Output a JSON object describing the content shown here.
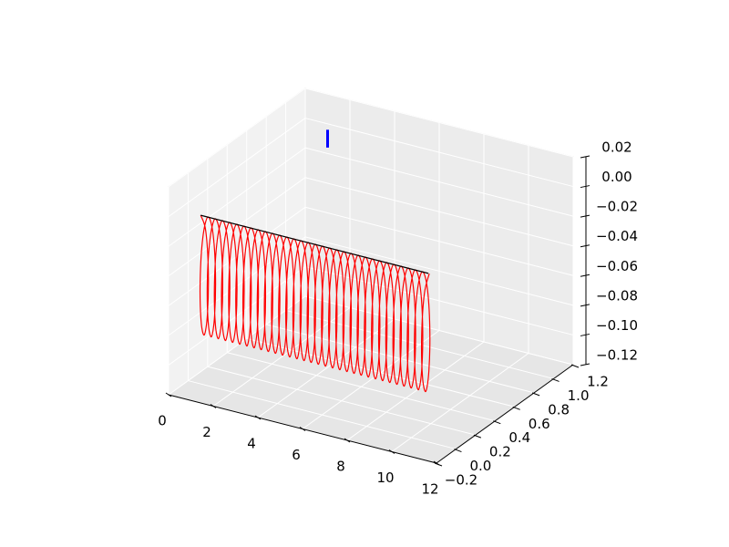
{
  "chart_data": {
    "type": "line3d",
    "xlim": [
      0,
      12
    ],
    "ylim": [
      -0.2,
      1.2
    ],
    "zlim": [
      -0.12,
      0.02
    ],
    "xticks": [
      0,
      2,
      4,
      6,
      8,
      10,
      12
    ],
    "yticks": [
      {
        "value": -0.2,
        "label": "−0.2"
      },
      {
        "value": 0,
        "label": "0.0"
      },
      0.2,
      0.4,
      0.6,
      0.8,
      {
        "value": 1,
        "label": "1.0"
      },
      1.2
    ],
    "zticks": [
      {
        "value": -0.12,
        "label": "−0.12"
      },
      {
        "value": -0.1,
        "label": "−0.10"
      },
      {
        "value": -0.08,
        "label": "−0.08"
      },
      {
        "value": -0.06,
        "label": "−0.06"
      },
      {
        "value": -0.04,
        "label": "−0.04"
      },
      {
        "value": -0.02,
        "label": "−0.02"
      },
      {
        "value": 0,
        "label": "0.00"
      },
      0.02
    ],
    "grid": true,
    "series": [
      {
        "color": "#ff0000",
        "x": [
          1,
          1.04,
          1.08,
          1.12,
          1.16,
          1.2,
          1.24,
          1.28,
          1.32,
          1.36,
          1.4,
          1.44,
          1.48,
          1.52,
          1.56,
          1.6,
          1.64,
          1.68,
          1.72,
          1.76,
          1.8,
          1.84,
          1.88,
          1.92,
          1.96,
          2,
          2.04,
          2.08,
          2.12,
          2.16,
          2.2,
          2.24,
          2.28,
          2.32,
          2.36,
          2.4,
          2.44,
          2.48,
          2.52,
          2.56,
          2.6,
          2.64,
          2.68,
          2.72,
          2.76,
          2.8,
          2.84,
          2.88,
          2.92,
          2.96,
          3,
          3.04,
          3.08,
          3.12,
          3.16,
          3.2,
          3.24,
          3.28,
          3.32,
          3.36,
          3.4,
          3.44,
          3.48,
          3.52,
          3.56,
          3.6,
          3.64,
          3.68,
          3.72,
          3.76,
          3.8,
          3.84,
          3.88,
          3.92,
          3.96,
          4,
          4.04,
          4.08,
          4.12,
          4.16,
          4.2,
          4.24,
          4.28,
          4.32,
          4.36,
          4.4,
          4.44,
          4.48,
          4.52,
          4.56,
          4.6,
          4.64,
          4.68,
          4.72,
          4.76,
          4.8,
          4.84,
          4.88,
          4.92,
          4.96,
          5,
          5.04,
          5.08,
          5.12,
          5.16,
          5.2,
          5.24,
          5.28,
          5.32,
          5.36,
          5.4,
          5.44,
          5.48,
          5.52,
          5.56,
          5.6,
          5.64,
          5.68,
          5.72,
          5.76,
          5.8,
          5.84,
          5.88,
          5.92,
          5.96,
          6,
          6.04,
          6.08,
          6.12,
          6.16,
          6.2,
          6.24,
          6.28,
          6.32,
          6.36,
          6.4,
          6.44,
          6.48,
          6.52,
          6.56,
          6.6,
          6.64,
          6.68,
          6.72,
          6.76,
          6.8,
          6.84,
          6.88,
          6.92,
          6.96,
          7,
          7.04,
          7.08,
          7.12,
          7.16,
          7.2,
          7.24,
          7.28,
          7.32,
          7.36,
          7.4,
          7.44,
          7.48,
          7.52,
          7.56,
          7.6,
          7.64,
          7.68,
          7.72,
          7.76,
          7.8,
          7.84,
          7.88,
          7.92,
          7.96,
          8,
          8.04,
          8.08,
          8.12,
          8.16,
          8.2,
          8.24,
          8.28,
          8.32,
          8.36,
          8.4,
          8.44,
          8.48,
          8.52,
          8.56,
          8.6,
          8.64,
          8.68,
          8.72,
          8.76,
          8.8,
          8.84,
          8.88,
          8.92,
          8.96,
          9,
          9.04,
          9.08,
          9.12,
          9.16,
          9.2,
          9.24,
          9.28,
          9.32,
          9.36,
          9.4,
          9.44,
          9.48,
          9.52,
          9.56,
          9.6,
          9.64,
          9.68,
          9.72,
          9.76,
          9.8,
          9.84,
          9.88,
          9.92,
          9.96,
          10,
          10.04,
          10.08,
          10.12,
          10.16,
          10.2,
          10.24,
          10.28,
          10.32,
          10.36,
          10.4,
          10.44,
          10.48,
          10.52,
          10.56,
          10.6,
          10.64,
          10.68,
          10.72,
          10.76,
          10.8,
          10.84,
          10.88,
          10.92,
          10.96,
          11,
          11.04,
          11.08,
          11.12,
          11.16,
          11.2,
          11.24
        ],
        "y": [
          -0.1,
          -0.058,
          -0.04,
          -0.058,
          -0.1,
          -0.142,
          -0.16,
          -0.142,
          -0.1,
          -0.058,
          -0.04,
          -0.058,
          -0.1,
          -0.142,
          -0.16,
          -0.142,
          -0.1,
          -0.058,
          -0.04,
          -0.058,
          -0.1,
          -0.142,
          -0.16,
          -0.142,
          -0.1,
          -0.058,
          -0.04,
          -0.058,
          -0.1,
          -0.142,
          -0.16,
          -0.142,
          -0.1,
          -0.058,
          -0.04,
          -0.058,
          -0.1,
          -0.142,
          -0.16,
          -0.142,
          -0.1,
          -0.058,
          -0.04,
          -0.058,
          -0.1,
          -0.142,
          -0.16,
          -0.142,
          -0.1,
          -0.058,
          -0.04,
          -0.058,
          -0.1,
          -0.142,
          -0.16,
          -0.142,
          -0.1,
          -0.058,
          -0.04,
          -0.058,
          -0.1,
          -0.142,
          -0.16,
          -0.142,
          -0.1,
          -0.058,
          -0.04,
          -0.058,
          -0.1,
          -0.142,
          -0.16,
          -0.142,
          -0.1,
          -0.058,
          -0.04,
          -0.058,
          -0.1,
          -0.142,
          -0.16,
          -0.142,
          -0.1,
          -0.058,
          -0.04,
          -0.058,
          -0.1,
          -0.142,
          -0.16,
          -0.142,
          -0.1,
          -0.058,
          -0.04,
          -0.058,
          -0.1,
          -0.142,
          -0.16,
          -0.142,
          -0.1,
          -0.058,
          -0.04,
          -0.058,
          -0.1,
          -0.142,
          -0.16,
          -0.142,
          -0.1,
          -0.058,
          -0.04,
          -0.058,
          -0.1,
          -0.142,
          -0.16,
          -0.142,
          -0.1,
          -0.058,
          -0.04,
          -0.058,
          -0.1,
          -0.142,
          -0.16,
          -0.142,
          -0.1,
          -0.058,
          -0.04,
          -0.058,
          -0.1,
          -0.142,
          -0.16,
          -0.142,
          -0.1,
          -0.058,
          -0.04,
          -0.058,
          -0.1,
          -0.142,
          -0.16,
          -0.142,
          -0.1,
          -0.058,
          -0.04,
          -0.058,
          -0.1,
          -0.142,
          -0.16,
          -0.142,
          -0.1,
          -0.058,
          -0.04,
          -0.058,
          -0.1,
          -0.142,
          -0.16,
          -0.142,
          -0.1,
          -0.058,
          -0.04,
          -0.058,
          -0.1,
          -0.142,
          -0.16,
          -0.142,
          -0.1,
          -0.058,
          -0.04,
          -0.058,
          -0.1,
          -0.142,
          -0.16,
          -0.142,
          -0.1,
          -0.058,
          -0.04,
          -0.058,
          -0.1,
          -0.142,
          -0.16,
          -0.142,
          -0.1,
          -0.058,
          -0.04,
          -0.058,
          -0.1,
          -0.142,
          -0.16,
          -0.142,
          -0.1,
          -0.058,
          -0.04,
          -0.058,
          -0.1,
          -0.142,
          -0.16,
          -0.142,
          -0.1,
          -0.058,
          -0.04,
          -0.058,
          -0.1,
          -0.142,
          -0.16,
          -0.142,
          -0.1,
          -0.058,
          -0.04,
          -0.058,
          -0.1,
          -0.142,
          -0.16,
          -0.142,
          -0.1,
          -0.058,
          -0.04,
          -0.058,
          -0.1,
          -0.142,
          -0.16,
          -0.142,
          -0.1,
          -0.058,
          -0.04,
          -0.058,
          -0.1,
          -0.142,
          -0.16,
          -0.142,
          -0.1,
          -0.058,
          -0.04,
          -0.058,
          -0.1,
          -0.142,
          -0.16,
          -0.142,
          -0.1,
          -0.058,
          -0.04,
          -0.058,
          -0.1,
          -0.142,
          -0.16,
          -0.142,
          -0.1,
          -0.058,
          -0.04,
          -0.058,
          -0.1,
          -0.142,
          -0.16,
          -0.142,
          -0.1,
          -0.058,
          -0.04,
          -0.058,
          -0.1,
          -0.142,
          -0.16,
          -0.142,
          -0.1
        ],
        "z": [
          0,
          -0.012,
          -0.04,
          -0.068,
          -0.08,
          -0.068,
          -0.04,
          -0.012,
          0,
          -0.012,
          -0.04,
          -0.068,
          -0.08,
          -0.068,
          -0.04,
          -0.012,
          0,
          -0.012,
          -0.04,
          -0.068,
          -0.08,
          -0.068,
          -0.04,
          -0.012,
          0,
          -0.012,
          -0.04,
          -0.068,
          -0.08,
          -0.068,
          -0.04,
          -0.012,
          0,
          -0.012,
          -0.04,
          -0.068,
          -0.08,
          -0.068,
          -0.04,
          -0.012,
          0,
          -0.012,
          -0.04,
          -0.068,
          -0.08,
          -0.068,
          -0.04,
          -0.012,
          0,
          -0.012,
          -0.04,
          -0.068,
          -0.08,
          -0.068,
          -0.04,
          -0.012,
          0,
          -0.012,
          -0.04,
          -0.068,
          -0.08,
          -0.068,
          -0.04,
          -0.012,
          0,
          -0.012,
          -0.04,
          -0.068,
          -0.08,
          -0.068,
          -0.04,
          -0.012,
          0,
          -0.012,
          -0.04,
          -0.068,
          -0.08,
          -0.068,
          -0.04,
          -0.012,
          0,
          -0.012,
          -0.04,
          -0.068,
          -0.08,
          -0.068,
          -0.04,
          -0.012,
          0,
          -0.012,
          -0.04,
          -0.068,
          -0.08,
          -0.068,
          -0.04,
          -0.012,
          0,
          -0.012,
          -0.04,
          -0.068,
          -0.08,
          -0.068,
          -0.04,
          -0.012,
          0,
          -0.012,
          -0.04,
          -0.068,
          -0.08,
          -0.068,
          -0.04,
          -0.012,
          0,
          -0.012,
          -0.04,
          -0.068,
          -0.08,
          -0.068,
          -0.04,
          -0.012,
          0,
          -0.012,
          -0.04,
          -0.068,
          -0.08,
          -0.068,
          -0.04,
          -0.012,
          0,
          -0.012,
          -0.04,
          -0.068,
          -0.08,
          -0.068,
          -0.04,
          -0.012,
          0,
          -0.012,
          -0.04,
          -0.068,
          -0.08,
          -0.068,
          -0.04,
          -0.012,
          0,
          -0.012,
          -0.04,
          -0.068,
          -0.08,
          -0.068,
          -0.04,
          -0.012,
          0,
          -0.012,
          -0.04,
          -0.068,
          -0.08,
          -0.068,
          -0.04,
          -0.012,
          0,
          -0.012,
          -0.04,
          -0.068,
          -0.08,
          -0.068,
          -0.04,
          -0.012,
          0,
          -0.012,
          -0.04,
          -0.068,
          -0.08,
          -0.068,
          -0.04,
          -0.012,
          0,
          -0.012,
          -0.04,
          -0.068,
          -0.08,
          -0.068,
          -0.04,
          -0.012,
          0,
          -0.012,
          -0.04,
          -0.068,
          -0.08,
          -0.068,
          -0.04,
          -0.012,
          0,
          -0.012,
          -0.04,
          -0.068,
          -0.08,
          -0.068,
          -0.04,
          -0.012,
          0,
          -0.012,
          -0.04,
          -0.068,
          -0.08,
          -0.068,
          -0.04,
          -0.012,
          0,
          -0.012,
          -0.04,
          -0.068,
          -0.08,
          -0.068,
          -0.04,
          -0.012,
          0,
          -0.012,
          -0.04,
          -0.068,
          -0.08,
          -0.068,
          -0.04,
          -0.012,
          0,
          -0.012,
          -0.04,
          -0.068,
          -0.08,
          -0.068,
          -0.04,
          -0.012,
          0,
          -0.012,
          -0.04,
          -0.068,
          -0.08,
          -0.068,
          -0.04,
          -0.012,
          0,
          -0.012,
          -0.04,
          -0.068,
          -0.08,
          -0.068,
          -0.04,
          -0.012,
          0,
          -0.012,
          -0.04,
          -0.068,
          -0.08,
          -0.068,
          -0.04,
          -0.012,
          0
        ],
        "smooth": true
      },
      {
        "color": "#000000",
        "x": [
          1,
          11.2
        ],
        "y": [
          -0.1,
          -0.1
        ],
        "z": [
          0,
          0
        ]
      },
      {
        "color": "#0000ff",
        "x": [
          1,
          1
        ],
        "y": [
          1.2,
          1.2
        ],
        "z": [
          -0.004,
          -0.016
        ],
        "width": 3
      }
    ]
  }
}
